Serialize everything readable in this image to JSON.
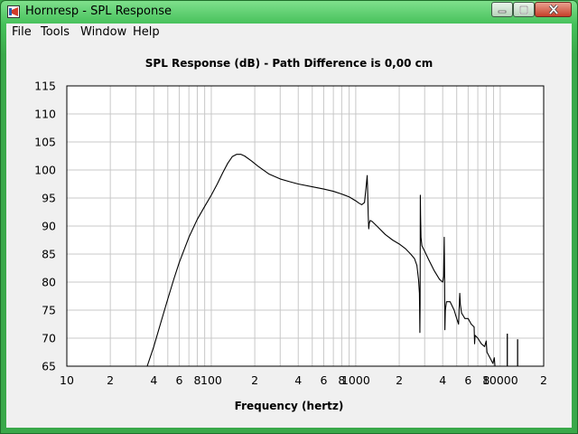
{
  "window": {
    "title": "Hornresp - SPL Response"
  },
  "menu": {
    "items": [
      "File",
      "Tools",
      "Window",
      "Help"
    ]
  },
  "icons": {
    "app": "hornresp-app-icon",
    "minimize": "minimize-icon",
    "maximize": "maximize-icon",
    "close": "close-icon"
  },
  "chart_data": {
    "type": "line",
    "title": "SPL Response (dB) - Path Difference is 0,00 cm",
    "xlabel": "Frequency (hertz)",
    "ylabel": "",
    "x_scale": "log",
    "xlim": [
      10,
      20000
    ],
    "ylim": [
      65,
      115
    ],
    "grid": true,
    "y_ticks": [
      "115",
      "110",
      "105",
      "100",
      "95",
      "90",
      "85",
      "80",
      "75",
      "70",
      "65"
    ],
    "x_ticks": [
      {
        "value": 10,
        "label": "10"
      },
      {
        "value": 20,
        "label": "2"
      },
      {
        "value": 40,
        "label": "4"
      },
      {
        "value": 60,
        "label": "6"
      },
      {
        "value": 80,
        "label": "8"
      },
      {
        "value": 100,
        "label": "100"
      },
      {
        "value": 200,
        "label": "2"
      },
      {
        "value": 400,
        "label": "4"
      },
      {
        "value": 600,
        "label": "6"
      },
      {
        "value": 800,
        "label": "8"
      },
      {
        "value": 1000,
        "label": "1000"
      },
      {
        "value": 2000,
        "label": "2"
      },
      {
        "value": 4000,
        "label": "4"
      },
      {
        "value": 6000,
        "label": "6"
      },
      {
        "value": 8000,
        "label": "8"
      },
      {
        "value": 10000,
        "label": "10000"
      },
      {
        "value": 20000,
        "label": "2"
      }
    ],
    "series": [
      {
        "color": "#000000",
        "points": [
          [
            36,
            65
          ],
          [
            40,
            68.5
          ],
          [
            45,
            73
          ],
          [
            50,
            77
          ],
          [
            55,
            80.5
          ],
          [
            60,
            83.5
          ],
          [
            70,
            88
          ],
          [
            80,
            91.2
          ],
          [
            90,
            93.5
          ],
          [
            100,
            95.5
          ],
          [
            110,
            97.5
          ],
          [
            120,
            99.5
          ],
          [
            130,
            101.2
          ],
          [
            140,
            102.4
          ],
          [
            150,
            102.8
          ],
          [
            160,
            102.8
          ],
          [
            170,
            102.5
          ],
          [
            190,
            101.6
          ],
          [
            210,
            100.7
          ],
          [
            250,
            99.3
          ],
          [
            300,
            98.4
          ],
          [
            350,
            97.9
          ],
          [
            400,
            97.5
          ],
          [
            500,
            97.0
          ],
          [
            600,
            96.6
          ],
          [
            700,
            96.2
          ],
          [
            800,
            95.7
          ],
          [
            900,
            95.2
          ],
          [
            1000,
            94.5
          ],
          [
            1050,
            94.1
          ],
          [
            1100,
            93.8
          ],
          [
            1150,
            94.2
          ],
          [
            1180,
            97.0
          ],
          [
            1200,
            99.0
          ],
          [
            1210,
            96.0
          ],
          [
            1220,
            92.0
          ],
          [
            1230,
            89.5
          ],
          [
            1240,
            90.5
          ],
          [
            1260,
            91.0
          ],
          [
            1300,
            90.8
          ],
          [
            1400,
            90.0
          ],
          [
            1600,
            88.5
          ],
          [
            1800,
            87.5
          ],
          [
            2000,
            86.8
          ],
          [
            2200,
            86.0
          ],
          [
            2400,
            85.0
          ],
          [
            2550,
            84.2
          ],
          [
            2650,
            83.0
          ],
          [
            2720,
            80.5
          ],
          [
            2760,
            78.0
          ],
          [
            2780,
            71.0
          ],
          [
            2790,
            76.0
          ],
          [
            2800,
            95.5
          ],
          [
            2810,
            92.0
          ],
          [
            2830,
            88.0
          ],
          [
            2870,
            86.5
          ],
          [
            3000,
            85.5
          ],
          [
            3200,
            84.0
          ],
          [
            3500,
            82.0
          ],
          [
            3800,
            80.5
          ],
          [
            4000,
            80.0
          ],
          [
            4060,
            81.0
          ],
          [
            4100,
            88.0
          ],
          [
            4120,
            82.0
          ],
          [
            4140,
            71.5
          ],
          [
            4170,
            75.0
          ],
          [
            4250,
            76.5
          ],
          [
            4500,
            76.5
          ],
          [
            4800,
            75.0
          ],
          [
            5000,
            73.5
          ],
          [
            5150,
            72.5
          ],
          [
            5250,
            78.0
          ],
          [
            5300,
            76.0
          ],
          [
            5400,
            74.5
          ],
          [
            5700,
            73.5
          ],
          [
            6000,
            73.5
          ],
          [
            6300,
            72.5
          ],
          [
            6600,
            72.0
          ],
          [
            6650,
            69.0
          ],
          [
            6700,
            70.5
          ],
          [
            7000,
            70.0
          ],
          [
            7400,
            69.0
          ],
          [
            7800,
            68.5
          ],
          [
            8000,
            69.5
          ],
          [
            8100,
            67.5
          ],
          [
            8500,
            66.5
          ],
          [
            8900,
            65.5
          ],
          [
            9100,
            66.5
          ],
          [
            9200,
            65.0
          ]
        ],
        "spikes": [
          [
            11200,
            65,
            70.8
          ],
          [
            13200,
            65,
            69.8
          ]
        ]
      }
    ]
  }
}
